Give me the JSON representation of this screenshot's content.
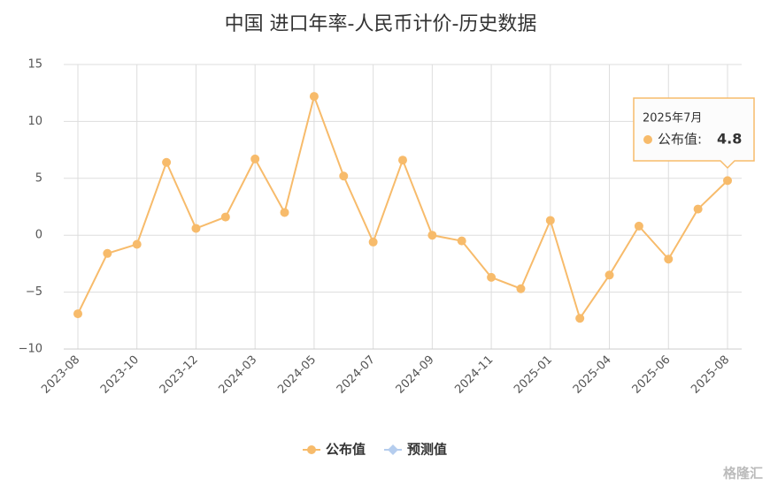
{
  "chart_data": {
    "type": "line",
    "title": "中国 进口年率-人民币计价-历史数据",
    "categories": [
      "2023-08",
      null,
      "2023-10",
      null,
      "2023-12",
      null,
      "2024-03",
      null,
      "2024-05",
      null,
      "2024-07",
      null,
      "2024-09",
      null,
      "2024-11",
      null,
      "2025-01",
      null,
      "2025-04",
      null,
      "2025-06",
      null,
      "2025-08"
    ],
    "series": [
      {
        "name": "公布值",
        "color": "#f7bb6b",
        "values": [
          -6.9,
          -1.6,
          -0.8,
          6.4,
          0.6,
          1.6,
          6.7,
          2.0,
          12.2,
          5.2,
          -0.6,
          6.6,
          0.0,
          -0.5,
          -3.7,
          -4.7,
          1.3,
          -7.3,
          -3.5,
          0.8,
          -2.1,
          2.3,
          4.8
        ]
      },
      {
        "name": "预测值",
        "color": "#b5cdee",
        "values": [
          null,
          null,
          null,
          null,
          null,
          null,
          null,
          null,
          null,
          null,
          null,
          null,
          null,
          null,
          null,
          null,
          null,
          null,
          null,
          null,
          null,
          null,
          null
        ]
      }
    ],
    "ylim": [
      -10,
      15
    ],
    "yticks": [
      {
        "value": -10,
        "label": "−10"
      },
      {
        "value": -5,
        "label": "−5"
      },
      0,
      5,
      10,
      15
    ],
    "grid": true,
    "legend": "bottom",
    "tooltip": {
      "date": "2025年7月",
      "series": "公布值:",
      "value": 4.8
    },
    "watermark": "格隆汇"
  }
}
